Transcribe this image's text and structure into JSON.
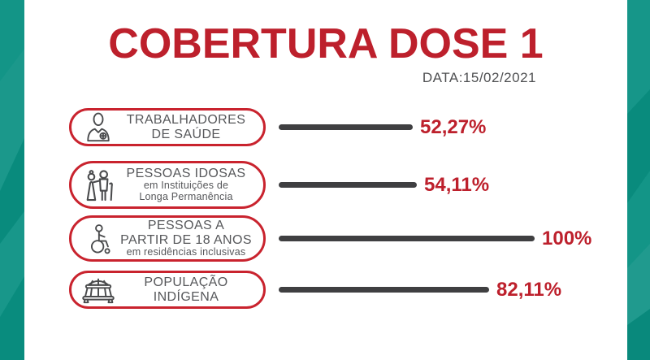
{
  "page": {
    "title": "COBERTURA DOSE 1",
    "date_label": "DATA:15/02/2021"
  },
  "colors": {
    "teal_strip": "#0a9183",
    "accent_red": "#bd202c",
    "bar_dark": "#3f3f41",
    "text_gray": "#56575a"
  },
  "chart_data": {
    "type": "bar",
    "orientation": "horizontal",
    "title": "COBERTURA DOSE 1",
    "subtitle": "DATA:15/02/2021",
    "categories": [
      "TRABALHADORES DE SAÚDE",
      "PESSOAS IDOSAS em Instituições de Longa Permanência",
      "PESSOAS A PARTIR DE 18 ANOS em residências inclusivas",
      "POPULAÇÃO INDÍGENA"
    ],
    "values": [
      52.27,
      54.11,
      100,
      82.11
    ],
    "value_labels": [
      "52,27%",
      "54,11%",
      "100%",
      "82,11%"
    ],
    "xlim": [
      0,
      100
    ],
    "grid": false,
    "legend": false,
    "bar_color": "#3f3f41",
    "value_label_color": "#bd202c"
  },
  "rows": [
    {
      "icon": "health-worker-icon",
      "label_line1": "TRABALHADORES",
      "label_line2": "DE SAÚDE",
      "value_pct": 52.27,
      "value_label": "52,27%"
    },
    {
      "icon": "elderly-couple-icon",
      "label_line1": "PESSOAS IDOSAS",
      "sub_line1": "em Instituições de",
      "sub_line2": "Longa Permanência",
      "value_pct": 54.11,
      "value_label": "54,11%"
    },
    {
      "icon": "wheelchair-icon",
      "label_line1": "PESSOAS A",
      "label_line2": "PARTIR DE 18 ANOS",
      "sub_line1": "em residências inclusivas",
      "value_pct": 100,
      "value_label": "100%"
    },
    {
      "icon": "indigenous-hut-icon",
      "label_line1": "POPULAÇÃO",
      "label_line2": "INDÍGENA",
      "value_pct": 82.11,
      "value_label": "82,11%"
    }
  ]
}
